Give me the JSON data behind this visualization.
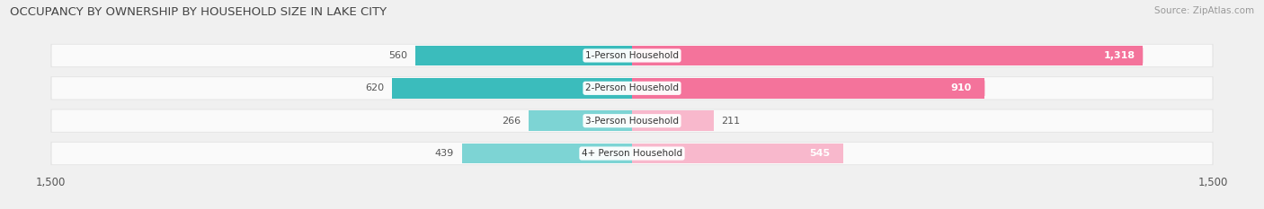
{
  "title": "OCCUPANCY BY OWNERSHIP BY HOUSEHOLD SIZE IN LAKE CITY",
  "source": "Source: ZipAtlas.com",
  "categories": [
    "1-Person Household",
    "2-Person Household",
    "3-Person Household",
    "4+ Person Household"
  ],
  "owner_values": [
    560,
    620,
    266,
    439
  ],
  "renter_values": [
    1318,
    910,
    211,
    545
  ],
  "owner_colors": [
    "#3bbcbc",
    "#3bbcbc",
    "#7dd4d4",
    "#7dd4d4"
  ],
  "renter_colors": [
    "#f4739b",
    "#f4739b",
    "#f8b8cc",
    "#f8b8cc"
  ],
  "owner_color_legend": "#3bbcbc",
  "renter_color_legend": "#f4739b",
  "axis_max": 1500,
  "background_color": "#f0f0f0",
  "row_bg_color": "#e4e4e4",
  "row_inner_color": "#fafafa",
  "title_color": "#444444",
  "source_color": "#999999",
  "renter_label_threshold": 400,
  "owner_label_color": "#555555"
}
